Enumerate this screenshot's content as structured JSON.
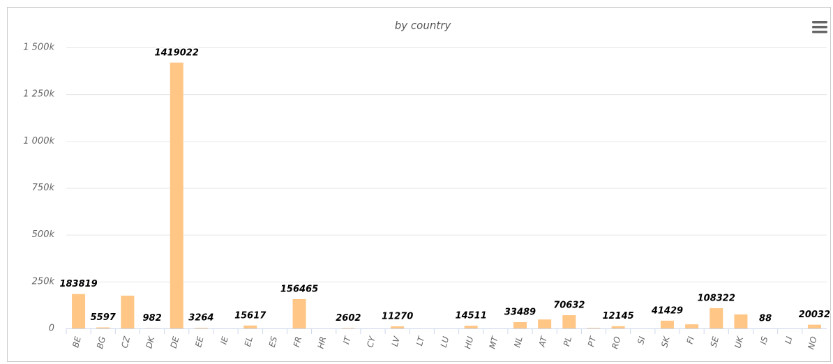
{
  "chart_data": {
    "type": "bar",
    "title": "by country",
    "categories": [
      "BE",
      "BG",
      "CZ",
      "DK",
      "DE",
      "EE",
      "IE",
      "EL",
      "ES",
      "FR",
      "HR",
      "IT",
      "CY",
      "LV",
      "LT",
      "LU",
      "HU",
      "MT",
      "NL",
      "AT",
      "PL",
      "PT",
      "RO",
      "SI",
      "SK",
      "FI",
      "SE",
      "UK",
      "IS",
      "LI",
      "NO"
    ],
    "values": [
      183819,
      5597,
      175000,
      982,
      1419022,
      3264,
      null,
      15617,
      null,
      156465,
      null,
      2602,
      null,
      11270,
      null,
      null,
      14511,
      null,
      33489,
      48000,
      70632,
      3000,
      12145,
      null,
      41429,
      22000,
      108322,
      75000,
      88,
      null,
      20032
    ],
    "value_labels": [
      "183819",
      "5597",
      null,
      "982",
      "1419022",
      "3264",
      null,
      "15617",
      null,
      "156465",
      null,
      "2602",
      null,
      "11270",
      null,
      null,
      "14511",
      null,
      "33489",
      null,
      "70632",
      null,
      "12145",
      null,
      "41429",
      null,
      "108322",
      null,
      "88",
      null,
      "20032"
    ],
    "color": "#ffc685",
    "ylim": [
      0,
      1500000
    ],
    "yticks": [
      0,
      {
        "value": 250000,
        "label": "250k"
      },
      {
        "value": 500000,
        "label": "500k"
      },
      {
        "value": 750000,
        "label": "750k"
      },
      {
        "value": 1000000,
        "label": "1 000k"
      },
      {
        "value": 1250000,
        "label": "1 250k"
      },
      {
        "value": 1500000,
        "label": "1 500k"
      }
    ],
    "grid": true
  }
}
